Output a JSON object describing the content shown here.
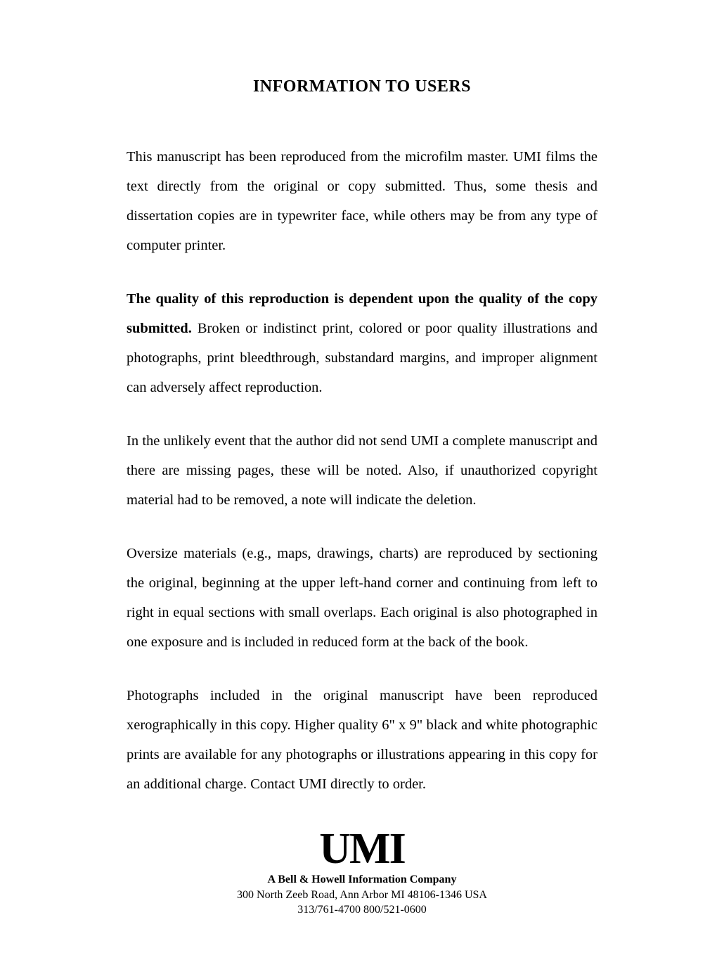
{
  "title": "INFORMATION TO USERS",
  "paragraphs": {
    "p1": "This manuscript has been reproduced from the microfilm master. UMI films the text directly from the original or copy submitted. Thus, some thesis and dissertation copies are in typewriter face, while others may be from any type of computer printer.",
    "p2_bold_lead": "The quality of this reproduction is dependent upon the quality of the copy submitted.",
    "p2_rest": " Broken or indistinct print, colored or poor quality illustrations and photographs, print bleedthrough, substandard margins, and improper alignment can adversely affect reproduction.",
    "p3": "In the unlikely event that the author did not send UMI a complete manuscript and there are missing pages, these will be noted. Also, if unauthorized copyright material had to be removed, a note will indicate the deletion.",
    "p4": "Oversize materials (e.g., maps, drawings, charts) are reproduced by sectioning the original, beginning at the upper left-hand corner and continuing from left to right in equal sections with small overlaps. Each original is also photographed in one exposure and is included in reduced form at the back of the book.",
    "p5": "Photographs included in the original manuscript have been reproduced xerographically in this copy. Higher quality 6\" x 9\" black and white photographic prints are available for any photographs or illustrations appearing in this copy for an additional charge. Contact UMI directly to order."
  },
  "footer": {
    "logo_text": "UMI",
    "company": "A Bell & Howell Information Company",
    "address": "300 North Zeeb Road, Ann Arbor MI 48106-1346 USA",
    "phones": "313/761-4700    800/521-0600"
  },
  "style": {
    "background_color": "#ffffff",
    "text_color": "#000000",
    "title_fontsize": 24,
    "body_fontsize": 20.5,
    "line_height": 2.05,
    "logo_fontsize": 62,
    "footer_fontsize": 16
  }
}
